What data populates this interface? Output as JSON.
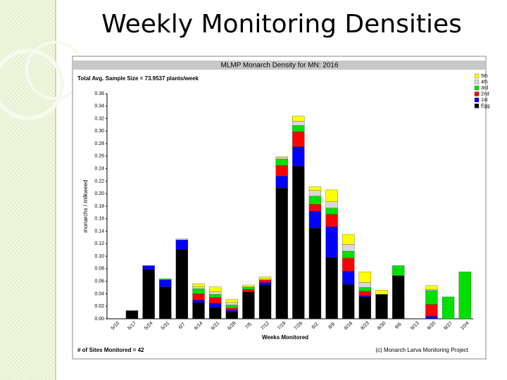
{
  "slide_title": "Weekly Monitoring Densities",
  "chart_data": {
    "type": "stacked_bar",
    "title": "MLMP Monarch Density for MN: 2016",
    "subtitle": "Total Avg. Sample Size = 73.9537 plants/week",
    "y_label": "monarchs / milkweed",
    "x_label": "Weeks Monitored",
    "footnote_left": "# of Sites Monitored = 42",
    "footnote_right": "(c) Monarch Larva Monitoring Project",
    "grid": false,
    "legend": "right",
    "categories": [
      "5/10",
      "5/17",
      "5/24",
      "5/31",
      "6/7",
      "6/14",
      "6/21",
      "6/28",
      "7/5",
      "7/12",
      "7/19",
      "7/26",
      "8/2",
      "8/9",
      "8/16",
      "8/23",
      "8/30",
      "9/6",
      "9/13",
      "9/20",
      "9/27",
      "10/4"
    ],
    "ylim": [
      0,
      0.36
    ],
    "yticks": [
      {
        "value": 0,
        "label": "0.00"
      },
      {
        "value": 0.02,
        "label": "0.02"
      },
      {
        "value": 0.04,
        "label": "0.04"
      },
      {
        "value": 0.06,
        "label": "0.06"
      },
      {
        "value": 0.08,
        "label": "0.08"
      },
      {
        "value": 0.1,
        "label": "0.10"
      },
      {
        "value": 0.12,
        "label": "0.12"
      },
      {
        "value": 0.14,
        "label": "0.14"
      },
      {
        "value": 0.16,
        "label": "0.16"
      },
      {
        "value": 0.18,
        "label": "0.18"
      },
      {
        "value": 0.2,
        "label": "0.20"
      },
      {
        "value": 0.22,
        "label": "0.22"
      },
      {
        "value": 0.24,
        "label": "0.24"
      },
      {
        "value": 0.26,
        "label": "0.26"
      },
      {
        "value": 0.28,
        "label": "0.28"
      },
      {
        "value": 0.3,
        "label": "0.30"
      },
      {
        "value": 0.32,
        "label": "0.32"
      },
      {
        "value": 0.34,
        "label": "0.34"
      },
      {
        "value": 0.36,
        "label": "0.36"
      }
    ],
    "series": [
      {
        "name": "Egg",
        "color": "#000000",
        "values": [
          0,
          0.013,
          0.079,
          0.051,
          0.111,
          0.026,
          0.018,
          0.011,
          0.043,
          0.054,
          0.209,
          0.244,
          0.145,
          0.098,
          0.055,
          0.035,
          0.039,
          0.069,
          0,
          0,
          0,
          0
        ]
      },
      {
        "name": "1st",
        "color": "#0000ff",
        "values": [
          0,
          0,
          0.006,
          0.011,
          0.015,
          0.004,
          0.007,
          0.003,
          0,
          0.004,
          0.019,
          0.031,
          0.027,
          0.049,
          0.021,
          0.002,
          0,
          0,
          0,
          0.004,
          0,
          0
        ]
      },
      {
        "name": "2nd",
        "color": "#ff0000",
        "values": [
          0,
          0,
          0,
          0,
          0,
          0.01,
          0.009,
          0.003,
          0.004,
          0.004,
          0.017,
          0.024,
          0.011,
          0.02,
          0.021,
          0.007,
          0,
          0,
          0,
          0.019,
          0,
          0
        ]
      },
      {
        "name": "3rd",
        "color": "#00e000",
        "values": [
          0,
          0,
          0,
          0.002,
          0,
          0.008,
          0.005,
          0.005,
          0.004,
          0,
          0.01,
          0.01,
          0.013,
          0.01,
          0.011,
          0.006,
          0,
          0.016,
          0,
          0.022,
          0.035,
          0.075
        ]
      },
      {
        "name": "4th",
        "color": "#d8d8d8",
        "values": [
          0,
          0,
          0,
          0,
          0.002,
          0.003,
          0.004,
          0.004,
          0,
          0.002,
          0.002,
          0.007,
          0.009,
          0.01,
          0.011,
          0.008,
          0,
          0,
          0,
          0.002,
          0,
          0
        ]
      },
      {
        "name": "5th",
        "color": "#ffff00",
        "values": [
          0,
          0,
          0,
          0,
          0,
          0.005,
          0.008,
          0.005,
          0.003,
          0.003,
          0.002,
          0.008,
          0.006,
          0.019,
          0.016,
          0.017,
          0.007,
          0,
          0,
          0.006,
          0,
          0
        ]
      }
    ]
  }
}
